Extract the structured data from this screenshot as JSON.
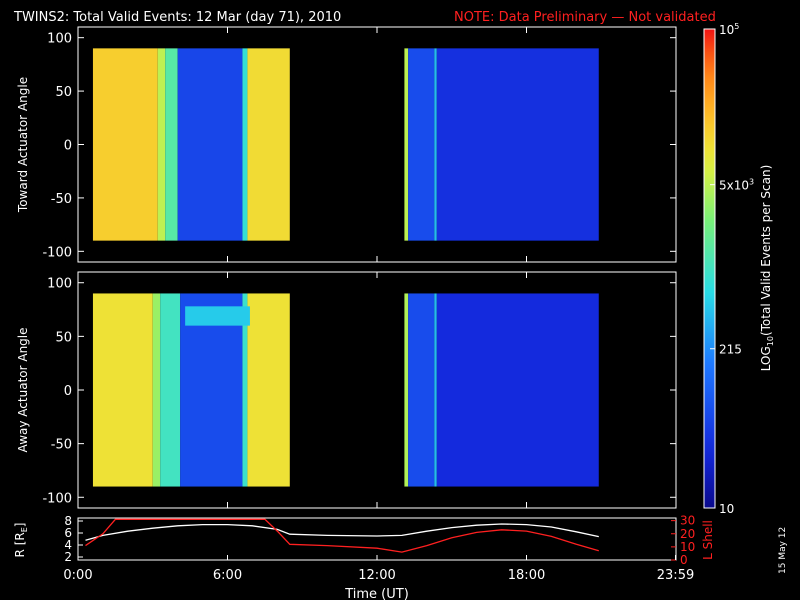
{
  "title": {
    "main": "TWINS2: Total Valid Events: 12 Mar (day  71), 2010",
    "note": "NOTE: Data Preliminary — Not validated"
  },
  "footer": {
    "date_stamp": "15 May 12"
  },
  "colors": {
    "note": "#ff2020",
    "axis": "#ffffff",
    "background": "#000000",
    "lshell": "#ff2020",
    "radius": "#ffffff"
  },
  "chart_data": [
    {
      "type": "heatmap",
      "panel": "top",
      "ylabel": "Toward Actuator Angle",
      "ylim": [
        -110,
        110
      ],
      "y_ticks": [
        "100",
        "50",
        "0",
        "-50",
        "-100"
      ],
      "y_extent": [
        -90,
        90
      ],
      "x_range_hours": [
        0,
        24
      ],
      "log_scale_color": true,
      "columns": [
        {
          "t0": 0.6,
          "t1": 3.2,
          "log10_events": 4.15
        },
        {
          "t0": 3.2,
          "t1": 3.5,
          "log10_events": 3.7
        },
        {
          "t0": 3.5,
          "t1": 4.0,
          "log10_events": 3.15
        },
        {
          "t0": 4.0,
          "t1": 6.6,
          "log10_events": 1.75
        },
        {
          "t0": 6.6,
          "t1": 6.8,
          "log10_events": 2.9
        },
        {
          "t0": 6.8,
          "t1": 8.5,
          "log10_events": 4.05
        },
        {
          "t0": 13.1,
          "t1": 13.25,
          "log10_events": 3.7
        },
        {
          "t0": 13.25,
          "t1": 14.3,
          "log10_events": 1.8
        },
        {
          "t0": 14.3,
          "t1": 14.4,
          "log10_events": 2.6
        },
        {
          "t0": 14.4,
          "t1": 20.9,
          "log10_events": 1.55
        }
      ]
    },
    {
      "type": "heatmap",
      "panel": "middle",
      "ylabel": "Away Actuator Angle",
      "ylim": [
        -110,
        110
      ],
      "y_ticks": [
        "100",
        "50",
        "0",
        "-50",
        "-100"
      ],
      "y_extent": [
        -90,
        90
      ],
      "x_range_hours": [
        0,
        24
      ],
      "log_scale_color": true,
      "columns": [
        {
          "t0": 0.6,
          "t1": 3.0,
          "log10_events": 4.0
        },
        {
          "t0": 3.0,
          "t1": 3.3,
          "log10_events": 3.55
        },
        {
          "t0": 3.3,
          "t1": 4.1,
          "log10_events": 3.0
        },
        {
          "t0": 4.1,
          "t1": 6.6,
          "log10_events": 1.8
        },
        {
          "t0": 6.6,
          "t1": 6.8,
          "log10_events": 2.95
        },
        {
          "t0": 6.8,
          "t1": 8.5,
          "log10_events": 4.0
        },
        {
          "t0": 13.1,
          "t1": 13.25,
          "log10_events": 3.65
        },
        {
          "t0": 13.25,
          "t1": 14.3,
          "log10_events": 1.8
        },
        {
          "t0": 14.3,
          "t1": 14.4,
          "log10_events": 2.6
        },
        {
          "t0": 14.4,
          "t1": 20.9,
          "log10_events": 1.5
        }
      ],
      "band": {
        "t0": 4.3,
        "t1": 6.9,
        "y_from": 60,
        "y_to": 78,
        "log10_events": 2.7
      }
    },
    {
      "type": "line",
      "panel": "bottom",
      "ylabel": "R [R",
      "ylabel_subscript": "E",
      "ylabel_end": "]",
      "y_ticks": [
        "8",
        "6",
        "4",
        "2"
      ],
      "ylim": [
        1.5,
        8.5
      ],
      "ylabel_right": "L Shell",
      "y_ticks_right": [
        "30",
        "20",
        "10",
        "0"
      ],
      "ylim_right": [
        0,
        32
      ],
      "x_ticks": [
        "0:00",
        "6:00",
        "12:00",
        "18:00",
        "23:59"
      ],
      "x_tick_hours": [
        0,
        6,
        12,
        18,
        23.98
      ],
      "xlabel": "Time (UT)",
      "series": [
        {
          "axis": "left",
          "x": [
            0.3,
            1.0,
            2.0,
            3.0,
            4.0,
            5.0,
            6.0,
            7.0,
            8.0,
            8.5,
            10.0,
            12.0,
            13.0,
            14.0,
            15.0,
            16.0,
            17.0,
            18.0,
            19.0,
            20.0,
            20.9
          ],
          "y": [
            4.8,
            5.6,
            6.3,
            6.8,
            7.2,
            7.4,
            7.4,
            7.2,
            6.6,
            5.8,
            5.6,
            5.5,
            5.6,
            6.3,
            6.9,
            7.3,
            7.5,
            7.4,
            7.0,
            6.2,
            5.4
          ]
        },
        {
          "axis": "right",
          "x": [
            0.3,
            1.0,
            1.5,
            7.5,
            8.0,
            8.5,
            10.0,
            12.0,
            13.0,
            14.0,
            15.0,
            16.0,
            17.0,
            18.0,
            19.0,
            20.0,
            20.9
          ],
          "y": [
            11,
            20,
            31,
            31,
            22,
            12,
            11,
            9,
            6,
            11,
            17,
            21,
            23,
            22,
            18,
            12,
            7
          ]
        }
      ]
    },
    {
      "type": "colorbar",
      "label": "LOG",
      "label_sub": "10",
      "label_rest": "(Total Valid  Events per Scan)",
      "tick_labels": [
        "10",
        "215",
        "5x10",
        "10"
      ],
      "tick_sup": [
        "",
        "",
        "3",
        "5"
      ],
      "log10_range": [
        1,
        5
      ],
      "tick_log10": [
        1,
        2.33,
        3.7,
        5
      ]
    }
  ]
}
